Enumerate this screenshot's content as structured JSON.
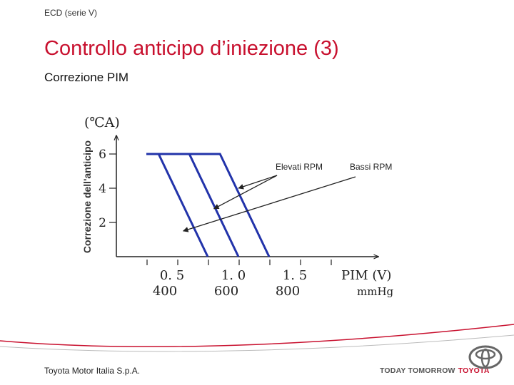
{
  "header": {
    "series": "ECD (serie V)"
  },
  "slide": {
    "title": "Controllo anticipo d’iniezione (3)",
    "subtitle": "Correzione PIM"
  },
  "chart_data": {
    "type": "line",
    "ylabel": "Correzione dell'anticipo",
    "y_unit_label": "(℃A)",
    "x_unit_label": "PIM (V)",
    "x_secondary_unit_label": "mmHg",
    "ylim": [
      0,
      7
    ],
    "y_ticks": [
      2,
      4,
      6
    ],
    "x_ticks": [
      {
        "value": 0.5,
        "label": "0. 5"
      },
      {
        "value": 1.0,
        "label": "1. 0"
      },
      {
        "value": 1.5,
        "label": "1. 5"
      }
    ],
    "x_secondary_ticks": [
      {
        "value": 0.5,
        "label": "400"
      },
      {
        "value": 1.0,
        "label": "600"
      },
      {
        "value": 1.5,
        "label": "800"
      }
    ],
    "series": [
      {
        "values": [
          [
            0.5,
            6
          ],
          [
            0.6,
            6
          ],
          [
            1.0,
            0
          ]
        ]
      },
      {
        "values": [
          [
            0.5,
            6
          ],
          [
            0.85,
            6
          ],
          [
            1.25,
            0
          ]
        ]
      },
      {
        "values": [
          [
            0.5,
            6
          ],
          [
            1.1,
            6
          ],
          [
            1.5,
            0
          ]
        ]
      }
    ],
    "annotations": [
      {
        "text": "Elevati RPM",
        "targets": [
          [
            1.25,
            4.0
          ],
          [
            1.05,
            2.8
          ]
        ]
      },
      {
        "text": "Bassi RPM",
        "targets": [
          [
            0.8,
            1.5
          ]
        ]
      }
    ],
    "line_color": "#2233aa"
  },
  "footer": {
    "company": "Toyota Motor Italia S.p.A.",
    "tagline_a": "TODAY TOMORROW",
    "tagline_b": "TOYOTA"
  },
  "logo": {
    "icon": "toyota-logo-icon"
  }
}
